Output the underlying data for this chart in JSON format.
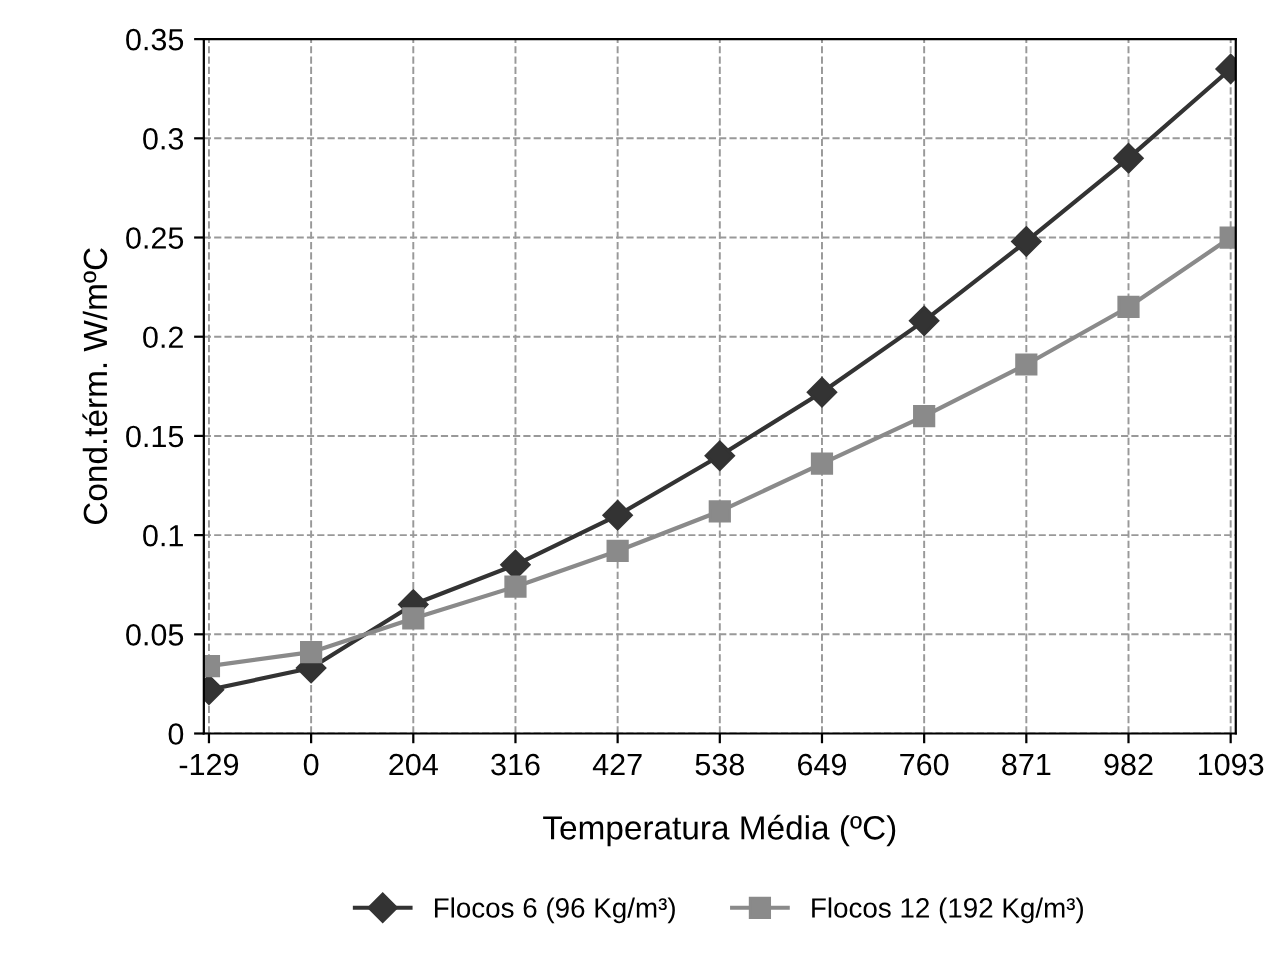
{
  "chart_data": {
    "type": "line",
    "xlabel": "Temperatura Média (ºC)",
    "ylabel": "Cond.térm. W/mºC",
    "categories": [
      "-129",
      "0",
      "204",
      "316",
      "427",
      "538",
      "649",
      "760",
      "871",
      "982",
      "1093"
    ],
    "series": [
      {
        "name": "Flocos 6 (96 Kg/m³)",
        "color": "#333333",
        "marker": "diamond",
        "values": [
          0.022,
          0.033,
          0.065,
          0.085,
          0.11,
          0.14,
          0.172,
          0.208,
          0.248,
          0.29,
          0.335
        ]
      },
      {
        "name": "Flocos 12 (192 Kg/m³)",
        "color": "#8a8a8a",
        "marker": "square",
        "values": [
          0.034,
          0.041,
          0.058,
          0.074,
          0.092,
          0.112,
          0.136,
          0.16,
          0.186,
          0.215,
          0.25
        ]
      }
    ],
    "ylim": [
      0,
      0.35
    ],
    "yticks": [
      0,
      0.05,
      0.1,
      0.15,
      0.2,
      0.25,
      0.3,
      0.35
    ],
    "grid": true,
    "legend": "bottom",
    "line_style": "solid"
  }
}
